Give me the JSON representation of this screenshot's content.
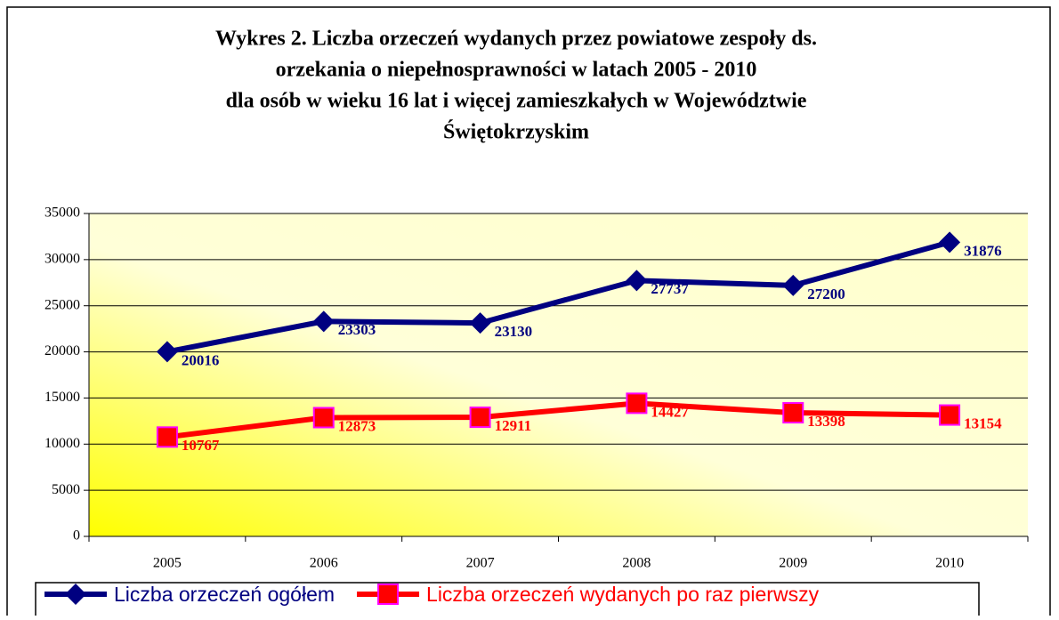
{
  "chart_data": {
    "type": "line",
    "title": "Wykres 2. Liczba orzeczeń wydanych przez powiatowe zespoły ds.",
    "title_lines": [
      "Wykres 2. Liczba orzeczeń wydanych przez powiatowe zespoły ds.",
      "orzekania o niepełnosprawności  w latach 2005 - 2010",
      "dla osób w wieku 16 lat  i więcej zamieszkałych w Województwie",
      "Świętokrzyskim"
    ],
    "categories": [
      "2005",
      "2006",
      "2007",
      "2008",
      "2009",
      "2010"
    ],
    "series": [
      {
        "name": "Liczba orzeczeń ogółem",
        "color": "#000080",
        "marker": "diamond",
        "values": [
          20016,
          23303,
          23130,
          27737,
          27200,
          31876
        ]
      },
      {
        "name": "Liczba orzeczeń wydanych po raz pierwszy",
        "color": "#ff0000",
        "marker": "square",
        "values": [
          10767,
          12873,
          12911,
          14427,
          13398,
          13154
        ]
      }
    ],
    "ylim": [
      0,
      35000
    ],
    "yticks": [
      0,
      5000,
      10000,
      15000,
      20000,
      25000,
      30000,
      35000
    ],
    "grid": true,
    "legend": "bottom"
  }
}
